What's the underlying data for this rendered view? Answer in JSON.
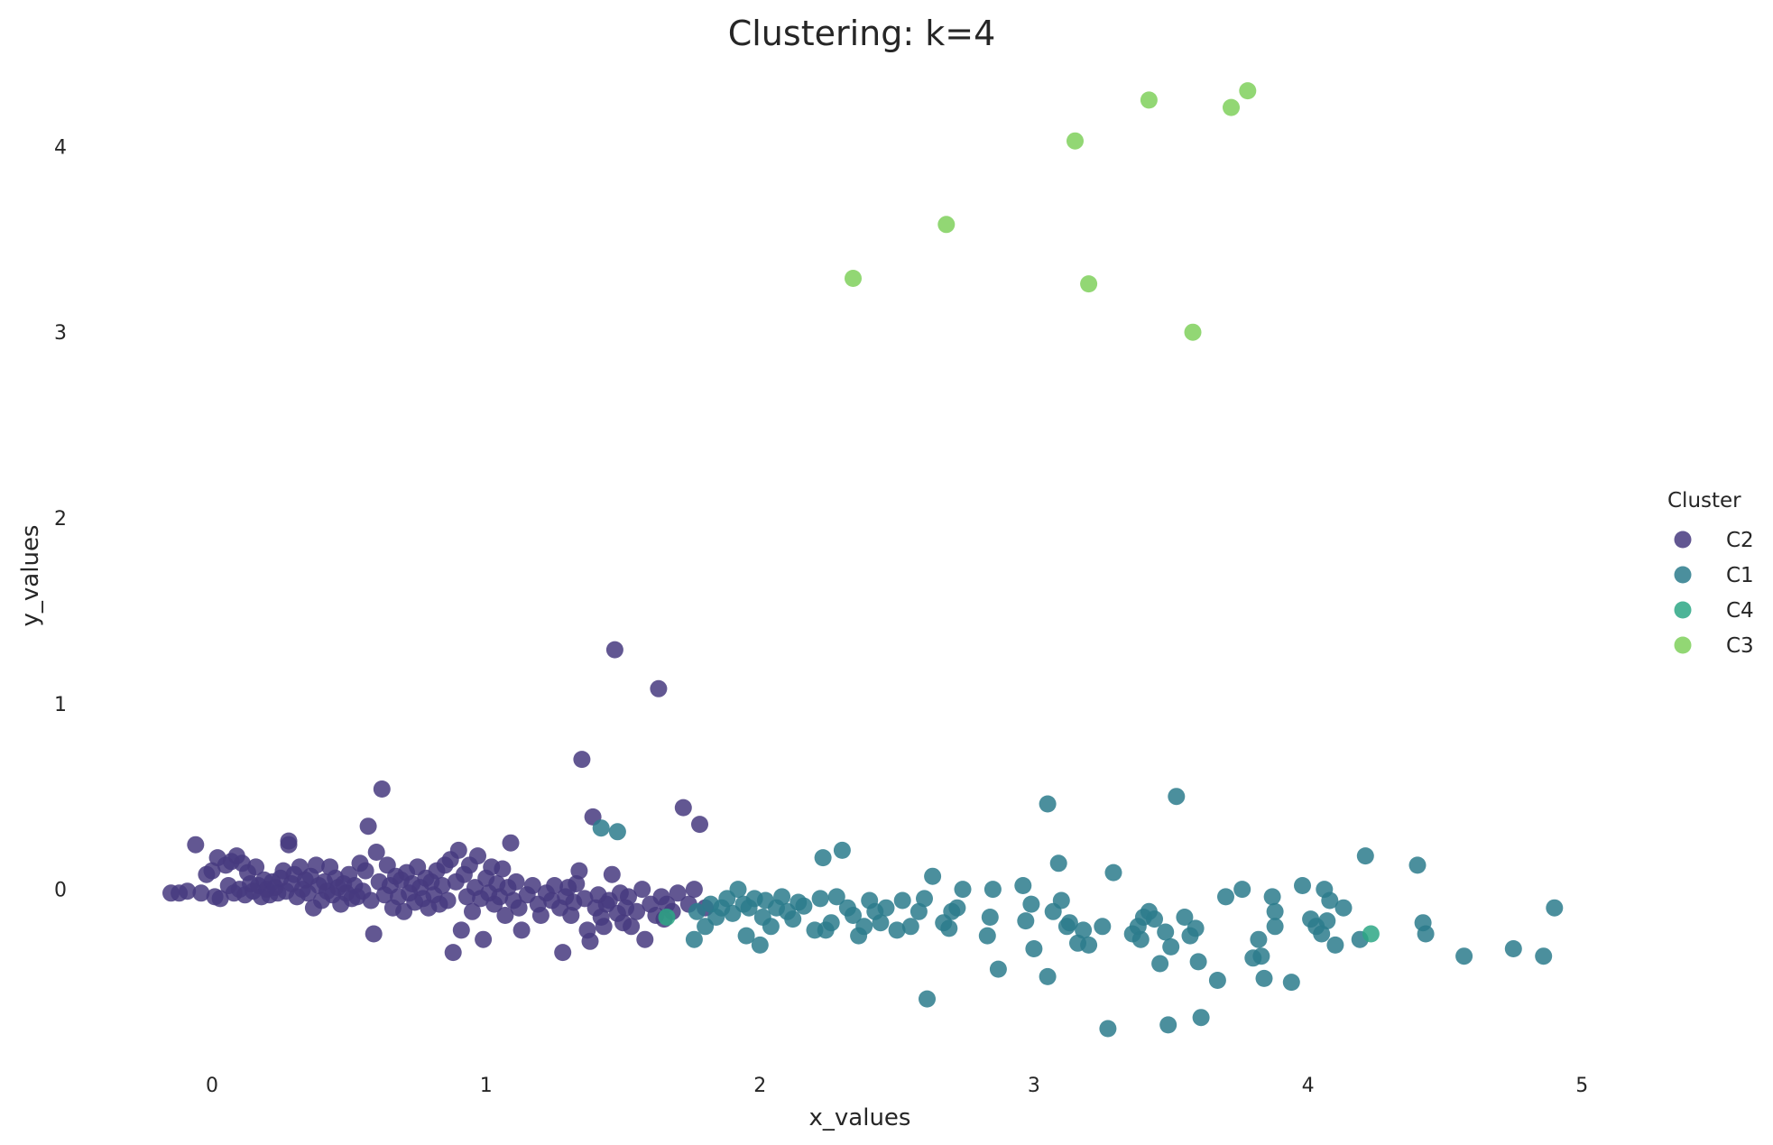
{
  "chart_data": {
    "type": "scatter",
    "title": "Clustering: k=4",
    "xlabel": "x_values",
    "ylabel": "y_values",
    "xlim": [
      -0.28,
      5.5
    ],
    "ylim": [
      -0.92,
      4.4
    ],
    "xticks": [
      0,
      1,
      2,
      3,
      4,
      5
    ],
    "yticks": [
      0,
      1,
      2,
      3,
      4
    ],
    "grid": false,
    "legend": {
      "title": "Cluster",
      "position": "right",
      "entries": [
        {
          "name": "C2",
          "color": "#46397f"
        },
        {
          "name": "C1",
          "color": "#2c7b8c"
        },
        {
          "name": "C4",
          "color": "#2da785"
        },
        {
          "name": "C3",
          "color": "#7fd05c"
        }
      ]
    },
    "series": [
      {
        "name": "C2",
        "color": "#46397f",
        "points": [
          [
            -0.15,
            -0.02
          ],
          [
            -0.12,
            -0.02
          ],
          [
            -0.09,
            -0.01
          ],
          [
            -0.06,
            0.24
          ],
          [
            -0.04,
            -0.02
          ],
          [
            -0.02,
            0.08
          ],
          [
            0.0,
            0.1
          ],
          [
            0.01,
            -0.04
          ],
          [
            0.02,
            0.17
          ],
          [
            0.03,
            -0.05
          ],
          [
            0.05,
            0.13
          ],
          [
            0.06,
            0.02
          ],
          [
            0.07,
            0.15
          ],
          [
            0.08,
            -0.02
          ],
          [
            0.09,
            0.18
          ],
          [
            0.1,
            0.0
          ],
          [
            0.11,
            0.14
          ],
          [
            0.12,
            -0.03
          ],
          [
            0.13,
            0.09
          ],
          [
            0.14,
            0.03
          ],
          [
            0.15,
            -0.01
          ],
          [
            0.16,
            0.12
          ],
          [
            0.17,
            0.02
          ],
          [
            0.18,
            -0.04
          ],
          [
            0.19,
            0.05
          ],
          [
            0.2,
            0.0
          ],
          [
            0.21,
            -0.03
          ],
          [
            0.22,
            0.04
          ],
          [
            0.23,
            0.01
          ],
          [
            0.24,
            -0.02
          ],
          [
            0.25,
            0.06
          ],
          [
            0.26,
            0.1
          ],
          [
            0.27,
            -0.01
          ],
          [
            0.28,
            0.26
          ],
          [
            0.28,
            0.24
          ],
          [
            0.29,
            0.03
          ],
          [
            0.3,
            0.08
          ],
          [
            0.31,
            -0.04
          ],
          [
            0.32,
            0.12
          ],
          [
            0.33,
            0.0
          ],
          [
            0.34,
            0.05
          ],
          [
            0.35,
            -0.02
          ],
          [
            0.36,
            0.07
          ],
          [
            0.37,
            -0.1
          ],
          [
            0.38,
            0.13
          ],
          [
            0.39,
            0.02
          ],
          [
            0.4,
            -0.06
          ],
          [
            0.41,
            0.04
          ],
          [
            0.42,
            -0.01
          ],
          [
            0.43,
            0.12
          ],
          [
            0.44,
            -0.03
          ],
          [
            0.45,
            0.06
          ],
          [
            0.46,
            0.01
          ],
          [
            0.47,
            -0.08
          ],
          [
            0.48,
            0.03
          ],
          [
            0.49,
            -0.02
          ],
          [
            0.5,
            0.08
          ],
          [
            0.51,
            -0.05
          ],
          [
            0.52,
            0.02
          ],
          [
            0.53,
            -0.04
          ],
          [
            0.54,
            0.14
          ],
          [
            0.55,
            -0.01
          ],
          [
            0.56,
            0.1
          ],
          [
            0.57,
            0.34
          ],
          [
            0.58,
            -0.06
          ],
          [
            0.59,
            -0.24
          ],
          [
            0.6,
            0.2
          ],
          [
            0.61,
            0.04
          ],
          [
            0.62,
            0.54
          ],
          [
            0.63,
            -0.03
          ],
          [
            0.64,
            0.13
          ],
          [
            0.65,
            0.02
          ],
          [
            0.66,
            -0.1
          ],
          [
            0.67,
            0.07
          ],
          [
            0.68,
            -0.04
          ],
          [
            0.69,
            0.05
          ],
          [
            0.7,
            -0.12
          ],
          [
            0.71,
            0.09
          ],
          [
            0.72,
            -0.02
          ],
          [
            0.73,
            0.03
          ],
          [
            0.74,
            -0.07
          ],
          [
            0.75,
            0.12
          ],
          [
            0.76,
            0.01
          ],
          [
            0.77,
            -0.05
          ],
          [
            0.78,
            0.06
          ],
          [
            0.79,
            -0.1
          ],
          [
            0.8,
            0.04
          ],
          [
            0.81,
            -0.03
          ],
          [
            0.82,
            0.1
          ],
          [
            0.83,
            -0.08
          ],
          [
            0.84,
            0.02
          ],
          [
            0.85,
            0.13
          ],
          [
            0.86,
            -0.06
          ],
          [
            0.87,
            0.16
          ],
          [
            0.88,
            -0.34
          ],
          [
            0.89,
            0.04
          ],
          [
            0.9,
            0.21
          ],
          [
            0.91,
            -0.22
          ],
          [
            0.92,
            0.08
          ],
          [
            0.93,
            -0.04
          ],
          [
            0.94,
            0.13
          ],
          [
            0.95,
            -0.12
          ],
          [
            0.96,
            0.01
          ],
          [
            0.97,
            0.18
          ],
          [
            0.98,
            -0.05
          ],
          [
            0.99,
            -0.27
          ],
          [
            1.0,
            0.06
          ],
          [
            1.01,
            -0.02
          ],
          [
            1.02,
            0.12
          ],
          [
            1.03,
            -0.08
          ],
          [
            1.04,
            0.03
          ],
          [
            1.05,
            -0.04
          ],
          [
            1.06,
            0.11
          ],
          [
            1.07,
            -0.14
          ],
          [
            1.08,
            0.01
          ],
          [
            1.09,
            0.25
          ],
          [
            1.1,
            -0.06
          ],
          [
            1.11,
            0.04
          ],
          [
            1.12,
            -0.1
          ],
          [
            1.13,
            -0.22
          ],
          [
            1.15,
            -0.03
          ],
          [
            1.17,
            0.02
          ],
          [
            1.19,
            -0.08
          ],
          [
            1.2,
            -0.14
          ],
          [
            1.22,
            -0.02
          ],
          [
            1.24,
            -0.06
          ],
          [
            1.25,
            0.02
          ],
          [
            1.27,
            -0.1
          ],
          [
            1.28,
            -0.34
          ],
          [
            1.29,
            -0.04
          ],
          [
            1.3,
            0.01
          ],
          [
            1.31,
            -0.14
          ],
          [
            1.32,
            -0.07
          ],
          [
            1.33,
            0.03
          ],
          [
            1.34,
            0.1
          ],
          [
            1.35,
            0.7
          ],
          [
            1.36,
            -0.05
          ],
          [
            1.37,
            -0.22
          ],
          [
            1.38,
            -0.28
          ],
          [
            1.39,
            0.39
          ],
          [
            1.4,
            -0.1
          ],
          [
            1.41,
            -0.03
          ],
          [
            1.42,
            -0.15
          ],
          [
            1.43,
            -0.2
          ],
          [
            1.44,
            -0.08
          ],
          [
            1.45,
            -0.06
          ],
          [
            1.46,
            0.08
          ],
          [
            1.47,
            1.29
          ],
          [
            1.48,
            -0.13
          ],
          [
            1.49,
            -0.02
          ],
          [
            1.5,
            -0.18
          ],
          [
            1.51,
            -0.1
          ],
          [
            1.52,
            -0.04
          ],
          [
            1.53,
            -0.2
          ],
          [
            1.55,
            -0.12
          ],
          [
            1.57,
            0.0
          ],
          [
            1.58,
            -0.27
          ],
          [
            1.6,
            -0.08
          ],
          [
            1.62,
            -0.14
          ],
          [
            1.63,
            1.08
          ],
          [
            1.64,
            -0.04
          ],
          [
            1.65,
            -0.16
          ],
          [
            1.66,
            -0.08
          ],
          [
            1.68,
            -0.12
          ],
          [
            1.7,
            -0.02
          ],
          [
            1.72,
            0.44
          ],
          [
            1.74,
            -0.08
          ],
          [
            1.76,
            0.0
          ],
          [
            1.78,
            0.35
          ],
          [
            1.8,
            -0.1
          ]
        ]
      },
      {
        "name": "C1",
        "color": "#2c7b8c",
        "points": [
          [
            1.42,
            0.33
          ],
          [
            1.48,
            0.31
          ],
          [
            1.76,
            -0.27
          ],
          [
            1.77,
            -0.12
          ],
          [
            1.8,
            -0.2
          ],
          [
            1.82,
            -0.08
          ],
          [
            1.84,
            -0.15
          ],
          [
            1.86,
            -0.1
          ],
          [
            1.88,
            -0.05
          ],
          [
            1.9,
            -0.13
          ],
          [
            1.92,
            0.0
          ],
          [
            1.94,
            -0.08
          ],
          [
            1.95,
            -0.25
          ],
          [
            1.96,
            -0.1
          ],
          [
            1.98,
            -0.05
          ],
          [
            2.0,
            -0.3
          ],
          [
            2.01,
            -0.15
          ],
          [
            2.02,
            -0.06
          ],
          [
            2.04,
            -0.2
          ],
          [
            2.06,
            -0.1
          ],
          [
            2.08,
            -0.04
          ],
          [
            2.1,
            -0.12
          ],
          [
            2.12,
            -0.16
          ],
          [
            2.14,
            -0.07
          ],
          [
            2.16,
            -0.09
          ],
          [
            2.2,
            -0.22
          ],
          [
            2.22,
            -0.05
          ],
          [
            2.23,
            0.17
          ],
          [
            2.24,
            -0.22
          ],
          [
            2.26,
            -0.18
          ],
          [
            2.28,
            -0.04
          ],
          [
            2.3,
            0.21
          ],
          [
            2.32,
            -0.1
          ],
          [
            2.34,
            -0.14
          ],
          [
            2.36,
            -0.25
          ],
          [
            2.38,
            -0.2
          ],
          [
            2.4,
            -0.06
          ],
          [
            2.42,
            -0.12
          ],
          [
            2.44,
            -0.18
          ],
          [
            2.46,
            -0.1
          ],
          [
            2.5,
            -0.22
          ],
          [
            2.52,
            -0.06
          ],
          [
            2.55,
            -0.2
          ],
          [
            2.58,
            -0.12
          ],
          [
            2.6,
            -0.05
          ],
          [
            2.61,
            -0.59
          ],
          [
            2.63,
            0.07
          ],
          [
            2.67,
            -0.18
          ],
          [
            2.69,
            -0.21
          ],
          [
            2.7,
            -0.12
          ],
          [
            2.72,
            -0.1
          ],
          [
            2.74,
            0.0
          ],
          [
            2.83,
            -0.25
          ],
          [
            2.84,
            -0.15
          ],
          [
            2.85,
            0.0
          ],
          [
            2.87,
            -0.43
          ],
          [
            2.96,
            0.02
          ],
          [
            2.97,
            -0.17
          ],
          [
            2.99,
            -0.08
          ],
          [
            3.0,
            -0.32
          ],
          [
            3.05,
            -0.47
          ],
          [
            3.05,
            0.46
          ],
          [
            3.07,
            -0.12
          ],
          [
            3.09,
            0.14
          ],
          [
            3.1,
            -0.06
          ],
          [
            3.12,
            -0.2
          ],
          [
            3.13,
            -0.18
          ],
          [
            3.16,
            -0.29
          ],
          [
            3.18,
            -0.22
          ],
          [
            3.2,
            -0.3
          ],
          [
            3.25,
            -0.2
          ],
          [
            3.27,
            -0.75
          ],
          [
            3.29,
            0.09
          ],
          [
            3.36,
            -0.24
          ],
          [
            3.38,
            -0.2
          ],
          [
            3.39,
            -0.27
          ],
          [
            3.4,
            -0.15
          ],
          [
            3.42,
            -0.12
          ],
          [
            3.44,
            -0.16
          ],
          [
            3.46,
            -0.4
          ],
          [
            3.48,
            -0.23
          ],
          [
            3.49,
            -0.73
          ],
          [
            3.5,
            -0.31
          ],
          [
            3.52,
            0.5
          ],
          [
            3.55,
            -0.15
          ],
          [
            3.57,
            -0.25
          ],
          [
            3.59,
            -0.21
          ],
          [
            3.6,
            -0.39
          ],
          [
            3.61,
            -0.69
          ],
          [
            3.67,
            -0.49
          ],
          [
            3.7,
            -0.04
          ],
          [
            3.76,
            0.0
          ],
          [
            3.8,
            -0.37
          ],
          [
            3.82,
            -0.27
          ],
          [
            3.83,
            -0.36
          ],
          [
            3.84,
            -0.48
          ],
          [
            3.87,
            -0.04
          ],
          [
            3.88,
            -0.2
          ],
          [
            3.88,
            -0.12
          ],
          [
            3.94,
            -0.5
          ],
          [
            3.98,
            0.02
          ],
          [
            4.01,
            -0.16
          ],
          [
            4.03,
            -0.2
          ],
          [
            4.05,
            -0.24
          ],
          [
            4.06,
            0.0
          ],
          [
            4.07,
            -0.17
          ],
          [
            4.08,
            -0.06
          ],
          [
            4.1,
            -0.3
          ],
          [
            4.13,
            -0.1
          ],
          [
            4.19,
            -0.27
          ],
          [
            4.21,
            0.18
          ],
          [
            4.4,
            0.13
          ],
          [
            4.42,
            -0.18
          ],
          [
            4.43,
            -0.24
          ],
          [
            4.57,
            -0.36
          ],
          [
            4.75,
            -0.32
          ],
          [
            4.86,
            -0.36
          ],
          [
            4.9,
            -0.1
          ]
        ]
      },
      {
        "name": "C4",
        "color": "#2da785",
        "points": [
          [
            1.66,
            -0.15
          ],
          [
            4.23,
            -0.24
          ]
        ]
      },
      {
        "name": "C3",
        "color": "#7fd05c",
        "points": [
          [
            2.34,
            3.29
          ],
          [
            2.68,
            3.58
          ],
          [
            3.15,
            4.03
          ],
          [
            3.2,
            3.26
          ],
          [
            3.42,
            4.25
          ],
          [
            3.58,
            3.0
          ],
          [
            3.72,
            4.21
          ],
          [
            3.78,
            4.3
          ]
        ]
      }
    ]
  }
}
